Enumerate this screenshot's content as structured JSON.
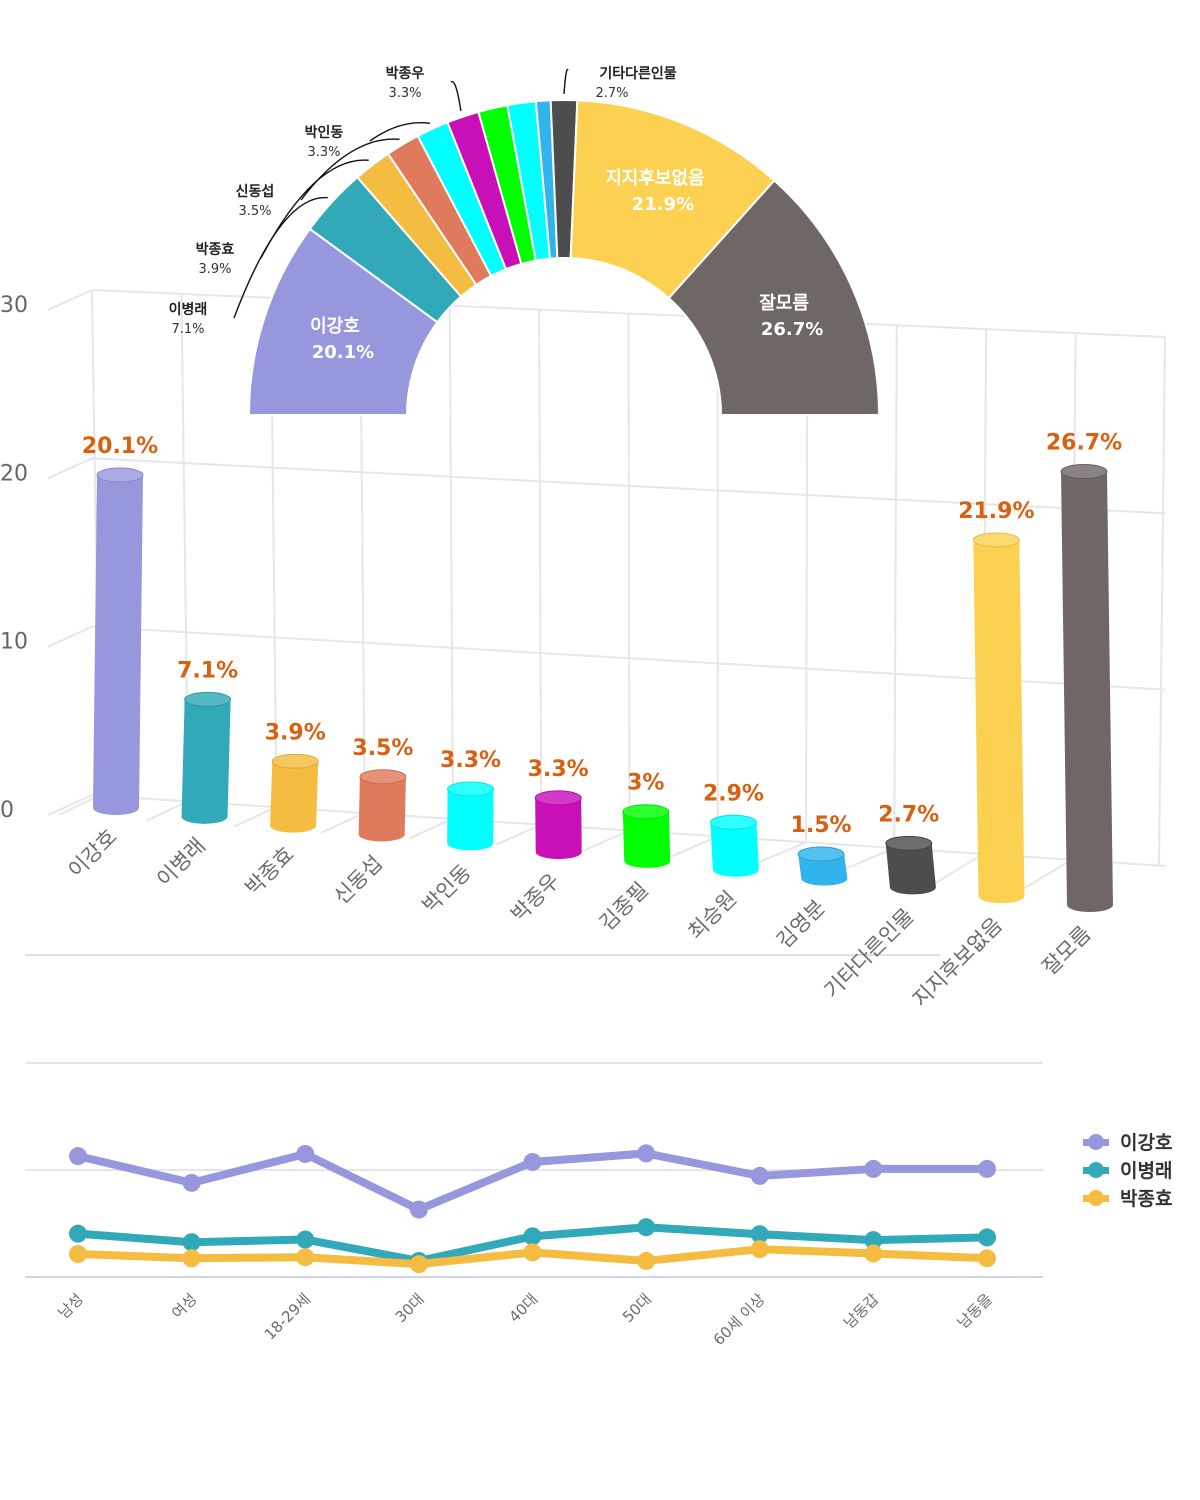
{
  "chart_data": [
    {
      "type": "bar",
      "style": "3d-cylinder",
      "title": "",
      "xlabel": "",
      "ylabel": "",
      "ylim": [
        0,
        30
      ],
      "yticks": [
        "0",
        "10",
        "20",
        "30"
      ],
      "grid": true,
      "categories": [
        "이강호",
        "이병래",
        "박종효",
        "신동섭",
        "박인동",
        "박종우",
        "김종필",
        "최승원",
        "김영분",
        "기타다른인물",
        "지지후보없음",
        "잘모름"
      ],
      "values": [
        20.1,
        7.1,
        3.9,
        3.5,
        3.3,
        3.3,
        3,
        2.9,
        1.5,
        2.7,
        21.9,
        26.7
      ],
      "value_labels": [
        "20.1%",
        "7.1%",
        "3.9%",
        "3.5%",
        "3.3%",
        "3.3%",
        "3%",
        "2.9%",
        "1.5%",
        "2.7%",
        "21.9%",
        "26.7%"
      ],
      "colors": [
        "#9797de",
        "#31a9b8",
        "#f4bc40",
        "#df7a5c",
        "#00ffff",
        "#c90fb8",
        "#00ff00",
        "#00ffff",
        "#31b3ec",
        "#4d4d4d",
        "#fcd152",
        "#6f6766"
      ],
      "value_label_color": "#d9600f"
    },
    {
      "type": "pie",
      "style": "semi-donut",
      "title": "",
      "labels": [
        "이강호",
        "이병래",
        "박종효",
        "신동섭",
        "박인동",
        "박종우",
        "김종필",
        "최승원",
        "김영분",
        "기타다른인물",
        "지지후보없음",
        "잘모름"
      ],
      "values": [
        20.1,
        7.1,
        3.9,
        3.5,
        3.3,
        3.3,
        3,
        2.9,
        1.5,
        2.7,
        21.9,
        26.7
      ],
      "colors": [
        "#9797de",
        "#31a9b8",
        "#f4bc40",
        "#df7a5c",
        "#00ffff",
        "#c90fb8",
        "#00ff00",
        "#00ffff",
        "#31b3ec",
        "#4d4d4d",
        "#fcd152",
        "#6f6766"
      ],
      "inside_labels": [
        {
          "name": "이강호",
          "value": "20.1%"
        },
        {
          "name": "지지후보없음",
          "value": "21.9%"
        },
        {
          "name": "잘모름",
          "value": "26.7%"
        }
      ],
      "callout_labels": [
        {
          "name": "이병래",
          "value": "7.1%"
        },
        {
          "name": "박종효",
          "value": "3.9%"
        },
        {
          "name": "신동섭",
          "value": "3.5%"
        },
        {
          "name": "박인동",
          "value": "3.3%"
        },
        {
          "name": "박종우",
          "value": "3.3%"
        },
        {
          "name": "기타다른인물",
          "value": "2.7%"
        }
      ]
    },
    {
      "type": "line",
      "title": "",
      "xlabel": "",
      "ylabel": "",
      "ylim": [
        0,
        40
      ],
      "grid": true,
      "legend": "right",
      "categories": [
        "남성",
        "여성",
        "18-29세",
        "30대",
        "40대",
        "50대",
        "60세 이상",
        "남동갑",
        "남동을"
      ],
      "series": [
        {
          "name": "이강호",
          "color": "#9797de",
          "values": [
            22.6,
            17.6,
            23.0,
            12.6,
            21.5,
            23.1,
            18.9,
            20.2,
            20.2
          ]
        },
        {
          "name": "이병래",
          "color": "#31a9b8",
          "values": [
            8.1,
            6.5,
            7.0,
            3.0,
            7.6,
            9.3,
            8.0,
            6.9,
            7.4
          ]
        },
        {
          "name": "박종효",
          "color": "#f4bc40",
          "values": [
            4.3,
            3.5,
            3.7,
            2.4,
            4.6,
            3.0,
            5.2,
            4.4,
            3.5
          ]
        }
      ]
    }
  ]
}
